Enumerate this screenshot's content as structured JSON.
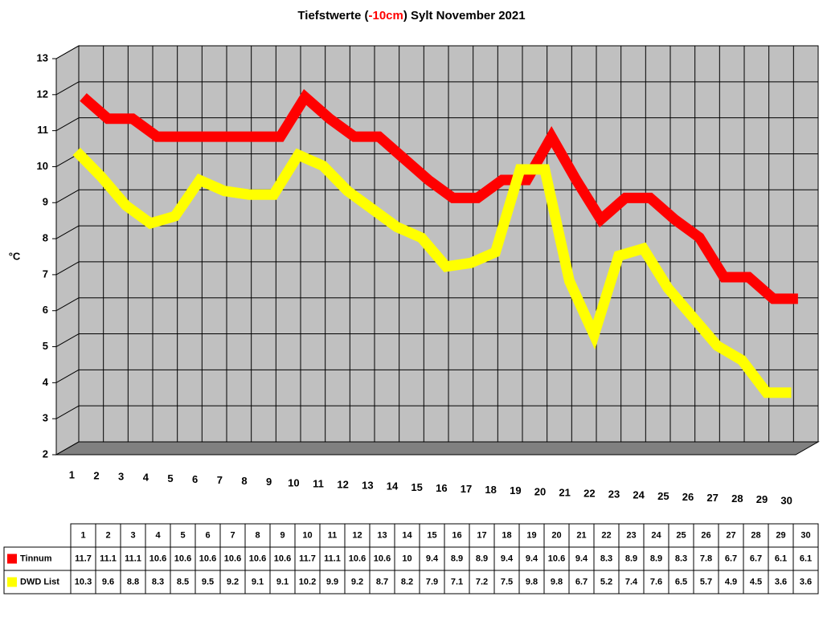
{
  "chart_data": {
    "type": "line",
    "title": [
      {
        "text": "Tiefstwerte (",
        "color": "#000000"
      },
      {
        "text": "-10cm",
        "color": "#ff0000"
      },
      {
        "text": ") Sylt November 2021",
        "color": "#000000"
      }
    ],
    "y_label": "°C",
    "categories": [
      "1",
      "2",
      "3",
      "4",
      "5",
      "6",
      "7",
      "8",
      "9",
      "10",
      "11",
      "12",
      "13",
      "14",
      "15",
      "16",
      "17",
      "18",
      "19",
      "20",
      "21",
      "22",
      "23",
      "24",
      "25",
      "26",
      "27",
      "28",
      "29",
      "30"
    ],
    "series": [
      {
        "name": "Tinnum",
        "color": "#ff0000",
        "values": [
          11.7,
          11.1,
          11.1,
          10.6,
          10.6,
          10.6,
          10.6,
          10.6,
          10.6,
          11.7,
          11.1,
          10.6,
          10.6,
          10,
          9.4,
          8.9,
          8.9,
          9.4,
          9.4,
          10.6,
          9.4,
          8.3,
          8.9,
          8.9,
          8.3,
          7.8,
          6.7,
          6.7,
          6.1,
          6.1
        ]
      },
      {
        "name": "DWD List",
        "color": "#ffff00",
        "values": [
          10.3,
          9.6,
          8.8,
          8.3,
          8.5,
          9.5,
          9.2,
          9.1,
          9.1,
          10.2,
          9.9,
          9.2,
          8.7,
          8.2,
          7.9,
          7.1,
          7.2,
          7.5,
          9.8,
          9.8,
          6.7,
          5.2,
          7.4,
          7.6,
          6.5,
          5.7,
          4.9,
          4.5,
          3.6,
          3.6
        ]
      }
    ],
    "ylim": [
      2,
      13
    ],
    "yticks": [
      2,
      3,
      4,
      5,
      6,
      7,
      8,
      9,
      10,
      11,
      12,
      13
    ],
    "grid": true,
    "data_table": true
  }
}
